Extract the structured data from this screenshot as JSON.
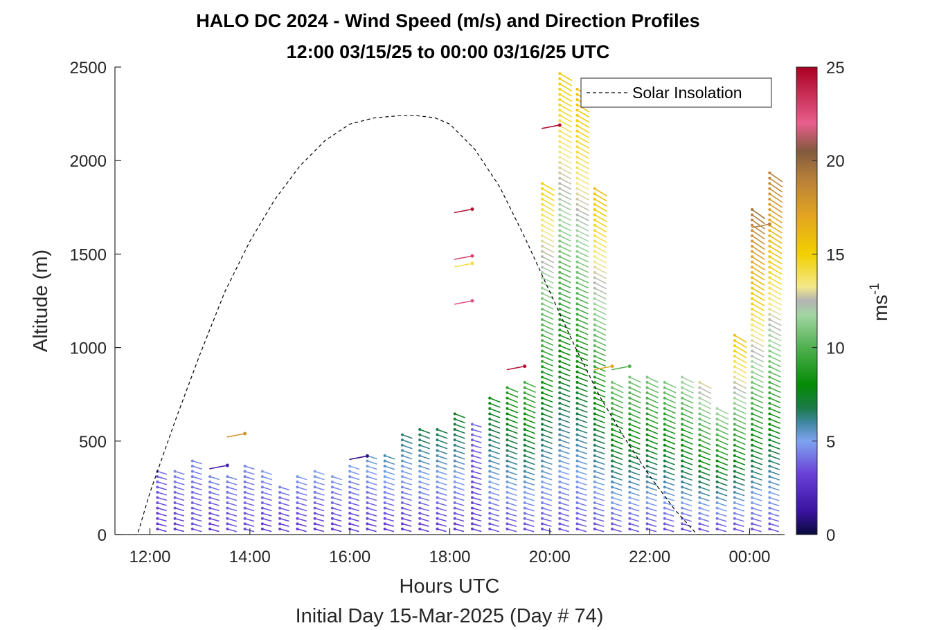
{
  "chart_data": {
    "type": "vector-profile",
    "title": "HALO DC 2024 - Wind Speed (m/s) and Direction Profiles",
    "subtitle": "12:00 03/15/25 to 00:00 03/16/25  UTC",
    "xlabel": "Hours UTC",
    "xlabel2": "Initial Day 15-Mar-2025 (Day # 74)",
    "ylabel": "Altitude (m)",
    "x_range_hours": [
      11.3,
      24.7
    ],
    "ylim": [
      0,
      2500
    ],
    "x_ticks": [
      {
        "hour": 12,
        "label": "12:00"
      },
      {
        "hour": 14,
        "label": "14:00"
      },
      {
        "hour": 16,
        "label": "16:00"
      },
      {
        "hour": 18,
        "label": "18:00"
      },
      {
        "hour": 20,
        "label": "20:00"
      },
      {
        "hour": 22,
        "label": "22:00"
      },
      {
        "hour": 24,
        "label": "00:00"
      }
    ],
    "y_ticks": [
      0,
      500,
      1000,
      1500,
      2000,
      2500
    ],
    "legend": {
      "entry": "Solar Insolation",
      "placement": "top-right"
    },
    "colorbar": {
      "label": "ms",
      "label_exp": "-1",
      "min": 0,
      "max": 25,
      "ticks": [
        0,
        5,
        10,
        15,
        20,
        25
      ]
    },
    "solar_insolation": {
      "hours": [
        11.3,
        11.75,
        12.0,
        12.5,
        13.0,
        13.5,
        14.0,
        14.5,
        15.0,
        15.5,
        16.0,
        16.5,
        17.0,
        17.35,
        17.7,
        18.0,
        18.5,
        19.0,
        19.5,
        20.0,
        20.5,
        21.0,
        21.5,
        22.0,
        22.5,
        22.95,
        23.2,
        24.7
      ],
      "relative": [
        0,
        0,
        0.1,
        0.27,
        0.43,
        0.58,
        0.7,
        0.8,
        0.88,
        0.94,
        0.98,
        0.995,
        1.0,
        1.0,
        0.995,
        0.98,
        0.92,
        0.83,
        0.71,
        0.58,
        0.45,
        0.33,
        0.23,
        0.14,
        0.06,
        0,
        0,
        0
      ]
    },
    "profiles": [
      {
        "hour": 12.15,
        "top": 340,
        "speed_base": 3.0,
        "speed_top": 4.0
      },
      {
        "hour": 12.5,
        "top": 340,
        "speed_base": 3.0,
        "speed_top": 4.5
      },
      {
        "hour": 12.85,
        "top": 400,
        "speed_base": 3.5,
        "speed_top": 4.5
      },
      {
        "hour": 13.2,
        "top": 310,
        "speed_base": 3.0,
        "speed_top": 4.5
      },
      {
        "hour": 13.55,
        "top": 310,
        "speed_base": 3.5,
        "speed_top": 4.5
      },
      {
        "hour": 13.9,
        "top": 370,
        "speed_base": 3.5,
        "speed_top": 4.5
      },
      {
        "hour": 14.25,
        "top": 360,
        "speed_base": 3.0,
        "speed_top": 5.0
      },
      {
        "hour": 14.6,
        "top": 280,
        "speed_base": 3.0,
        "speed_top": 4.5
      },
      {
        "hour": 14.95,
        "top": 330,
        "speed_base": 3.0,
        "speed_top": 5.0
      },
      {
        "hour": 15.3,
        "top": 340,
        "speed_base": 3.0,
        "speed_top": 5.0
      },
      {
        "hour": 15.65,
        "top": 330,
        "speed_base": 3.0,
        "speed_top": 5.0
      },
      {
        "hour": 16.0,
        "top": 370,
        "speed_base": 3.0,
        "speed_top": 5.0
      },
      {
        "hour": 16.35,
        "top": 430,
        "speed_base": 3.0,
        "speed_top": 5.5
      },
      {
        "hour": 16.7,
        "top": 440,
        "speed_base": 3.0,
        "speed_top": 6.0
      },
      {
        "hour": 17.05,
        "top": 550,
        "speed_base": 3.0,
        "speed_top": 6.5
      },
      {
        "hour": 17.4,
        "top": 580,
        "speed_base": 3.0,
        "speed_top": 7.0
      },
      {
        "hour": 17.75,
        "top": 580,
        "speed_base": 3.0,
        "speed_top": 7.0
      },
      {
        "hour": 18.1,
        "top": 650,
        "speed_base": 3.0,
        "speed_top": 7.5
      },
      {
        "hour": 18.45,
        "top": 600,
        "speed_base": 3.0,
        "speed_top": 4.0
      },
      {
        "hour": 18.8,
        "top": 750,
        "speed_base": 3.5,
        "speed_top": 8.0
      },
      {
        "hour": 19.15,
        "top": 790,
        "speed_base": 3.5,
        "speed_top": 9.0
      },
      {
        "hour": 19.5,
        "top": 840,
        "speed_base": 3.5,
        "speed_top": 10.0
      },
      {
        "hour": 19.85,
        "top": 1900,
        "speed_base": 3.5,
        "speed_top": 15.0
      },
      {
        "hour": 20.2,
        "top": 2490,
        "speed_base": 3.5,
        "speed_top": 15.5
      },
      {
        "hour": 20.55,
        "top": 2400,
        "speed_base": 3.5,
        "speed_top": 16.0
      },
      {
        "hour": 20.9,
        "top": 1870,
        "speed_base": 3.5,
        "speed_top": 16.0
      },
      {
        "hour": 21.25,
        "top": 840,
        "speed_base": 3.5,
        "speed_top": 11.0
      },
      {
        "hour": 21.6,
        "top": 860,
        "speed_base": 3.5,
        "speed_top": 11.0
      },
      {
        "hour": 21.95,
        "top": 850,
        "speed_base": 3.5,
        "speed_top": 11.0
      },
      {
        "hour": 22.3,
        "top": 820,
        "speed_base": 3.5,
        "speed_top": 11.0
      },
      {
        "hour": 22.65,
        "top": 850,
        "speed_base": 3.5,
        "speed_top": 12.0
      },
      {
        "hour": 23.0,
        "top": 820,
        "speed_base": 3.5,
        "speed_top": 13.0
      },
      {
        "hour": 23.35,
        "top": 690,
        "speed_base": 3.5,
        "speed_top": 12.0
      },
      {
        "hour": 23.7,
        "top": 1090,
        "speed_base": 3.5,
        "speed_top": 16.0
      },
      {
        "hour": 24.05,
        "top": 1740,
        "speed_base": 3.5,
        "speed_top": 19.5
      },
      {
        "hour": 24.4,
        "top": 1940,
        "speed_base": 3.5,
        "speed_top": 19.0
      }
    ],
    "isolated_barbs": [
      {
        "hour": 13.55,
        "alt": 370,
        "speed": 2.0
      },
      {
        "hour": 13.9,
        "alt": 540,
        "speed": 18.0
      },
      {
        "hour": 16.35,
        "alt": 420,
        "speed": 1.0
      },
      {
        "hour": 18.45,
        "alt": 1740,
        "speed": 24.5
      },
      {
        "hour": 18.45,
        "alt": 1490,
        "speed": 23.0
      },
      {
        "hour": 18.45,
        "alt": 1450,
        "speed": 14.0
      },
      {
        "hour": 18.45,
        "alt": 1250,
        "speed": 22.5
      },
      {
        "hour": 19.5,
        "alt": 900,
        "speed": 24.5
      },
      {
        "hour": 20.2,
        "alt": 2190,
        "speed": 24.5
      },
      {
        "hour": 21.25,
        "alt": 900,
        "speed": 17.0
      },
      {
        "hour": 21.6,
        "alt": 900,
        "speed": 10.0
      },
      {
        "hour": 24.4,
        "alt": 1660,
        "speed": 19.0
      }
    ]
  }
}
